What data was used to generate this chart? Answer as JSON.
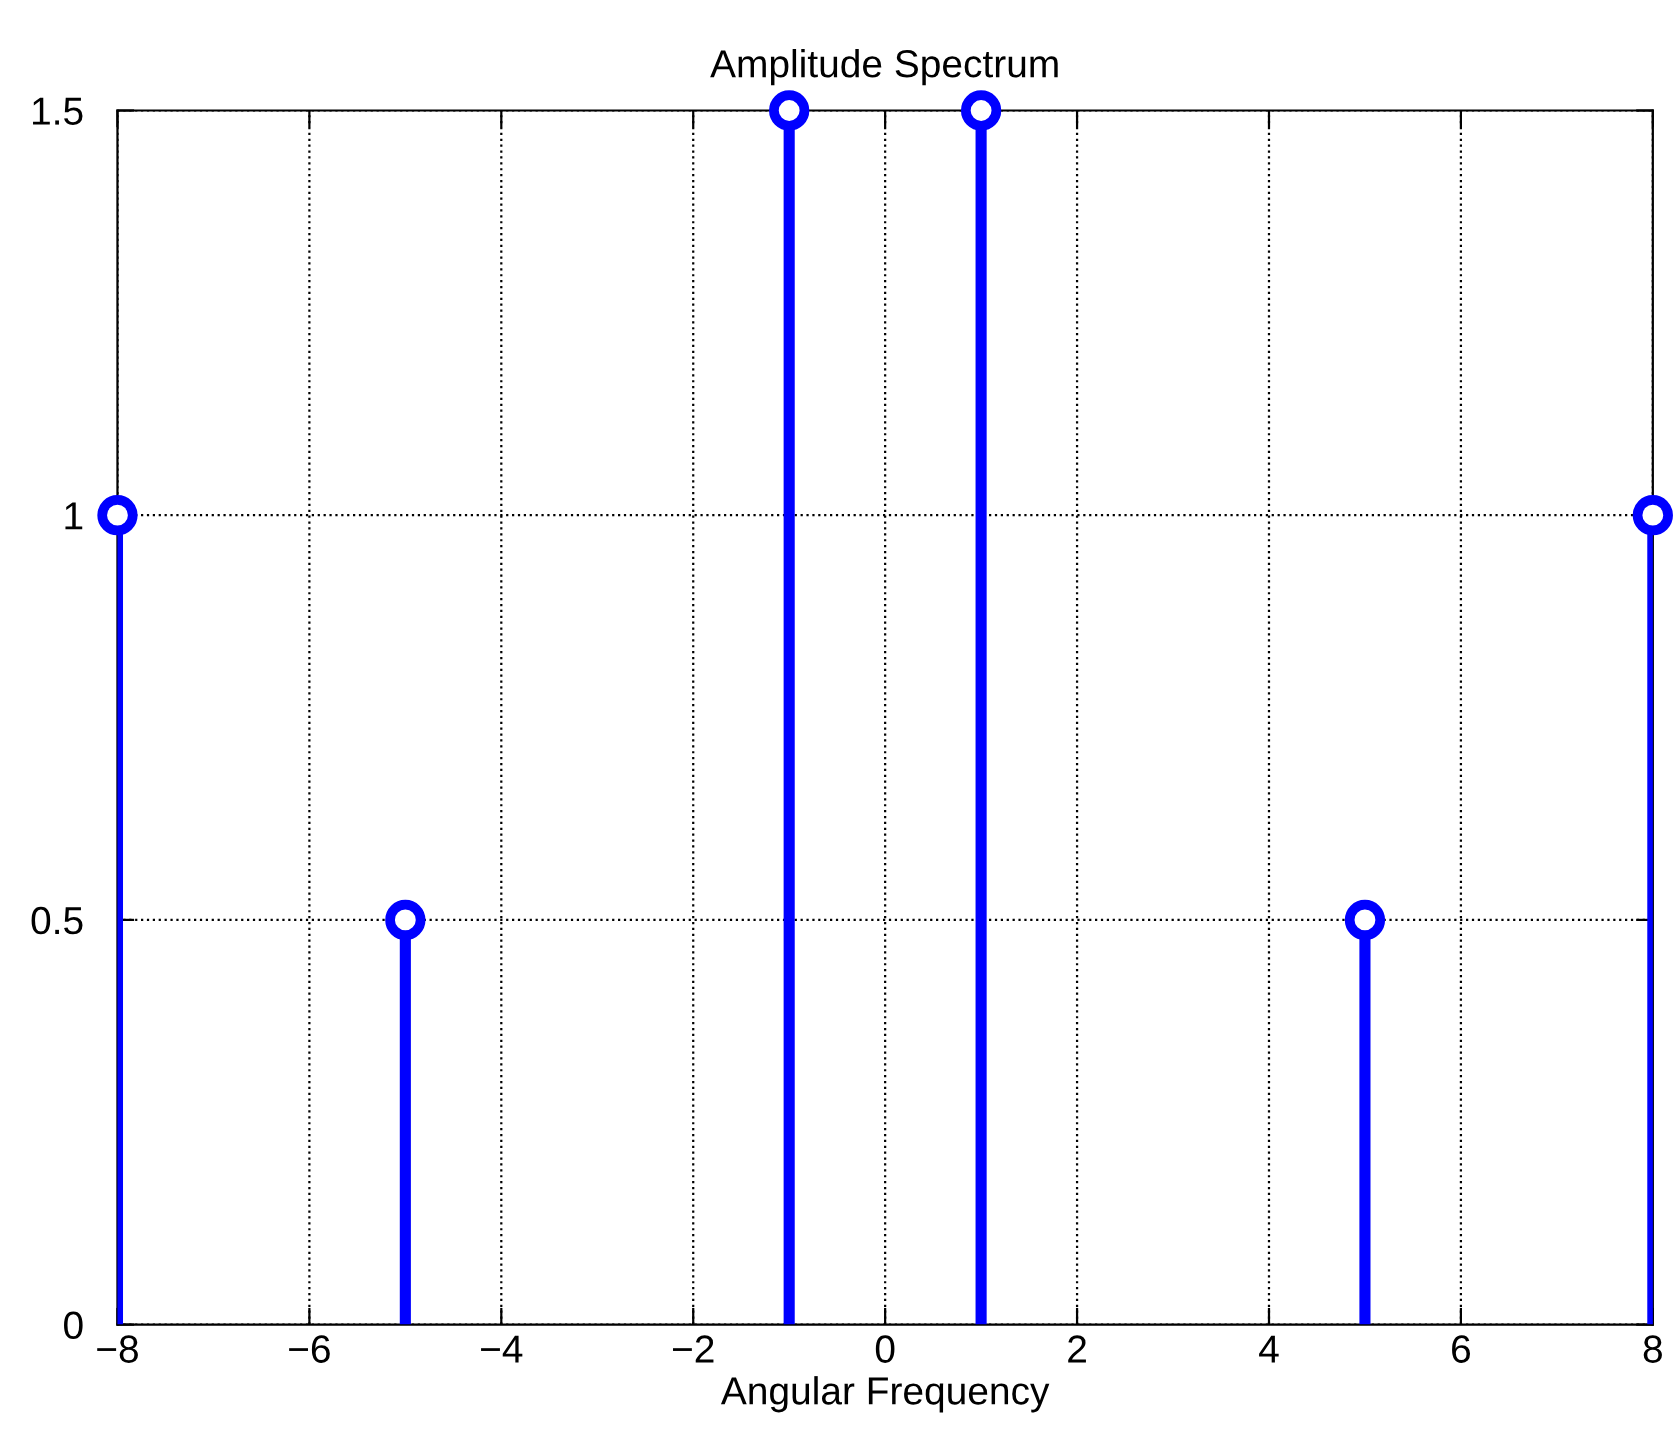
{
  "chart_data": {
    "type": "lollipop",
    "title": "Amplitude Spectrum",
    "xlabel": "Angular Frequency",
    "x": [
      -8,
      -5,
      -1,
      1,
      5,
      8
    ],
    "series": [
      {
        "color": "#0000ff",
        "values": [
          1,
          0.5,
          1.5,
          1.5,
          0.5,
          1
        ]
      }
    ],
    "xlim": [
      -8,
      8
    ],
    "xticks": [
      {
        "value": -8,
        "label": "−8"
      },
      {
        "value": -6,
        "label": "−6"
      },
      {
        "value": -4,
        "label": "−4"
      },
      {
        "value": -2,
        "label": "−2"
      },
      0,
      2,
      4,
      6,
      8
    ],
    "ylim": [
      0,
      1.5
    ],
    "yticks": [
      0,
      0.5,
      1,
      1.5
    ],
    "grid": true,
    "marker": "circle",
    "line_style": "solid"
  }
}
